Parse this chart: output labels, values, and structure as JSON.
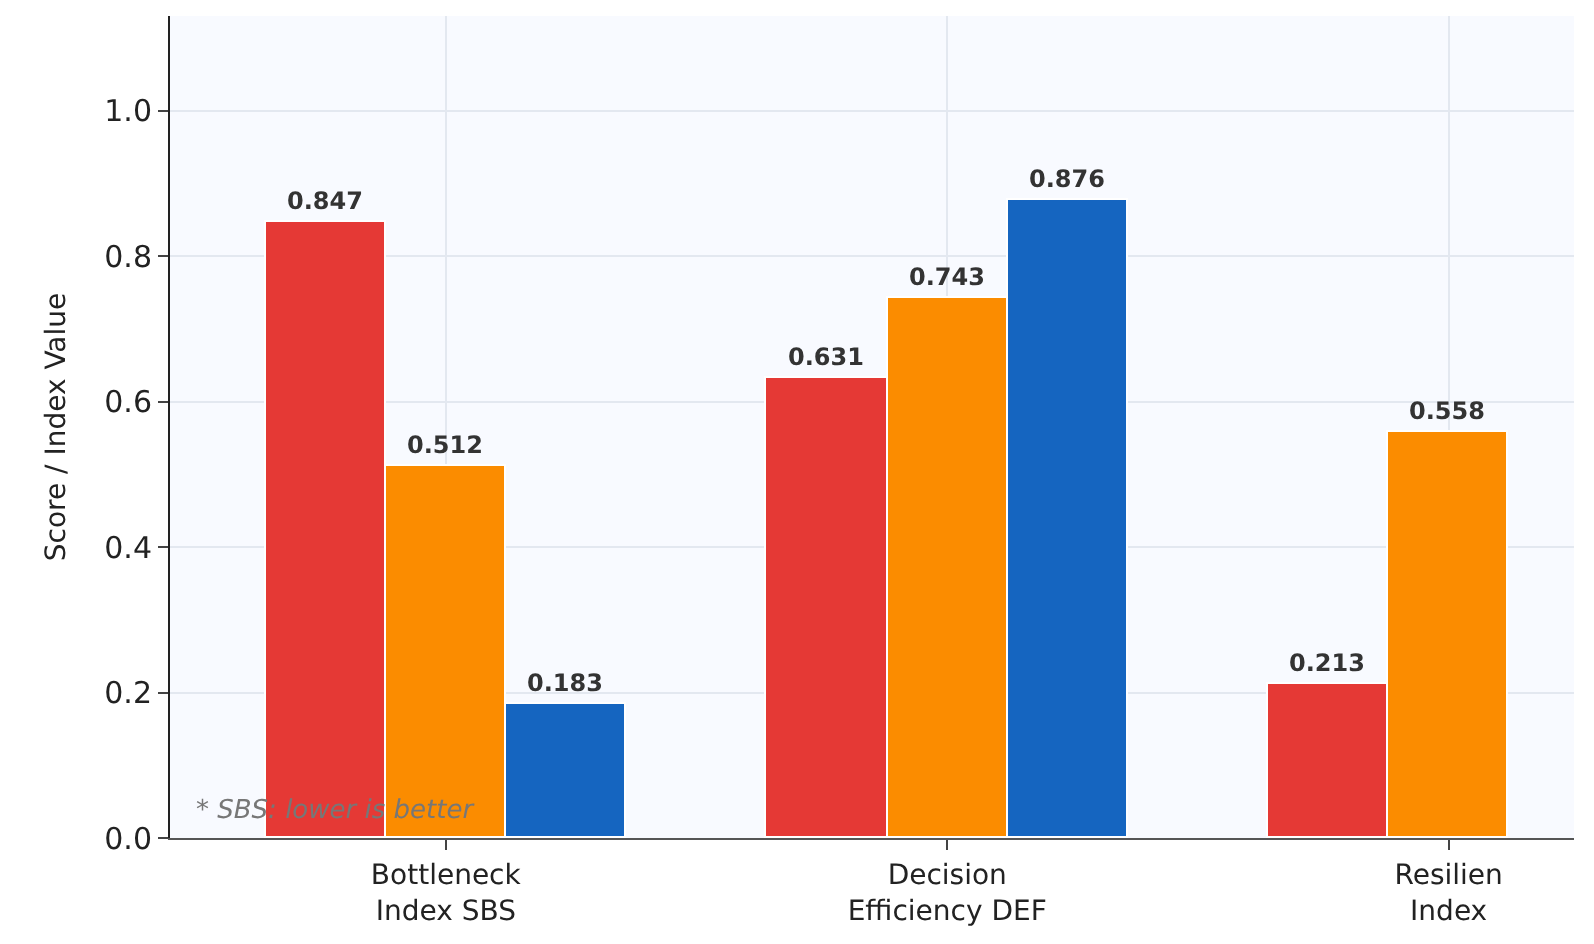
{
  "chart_data": {
    "type": "bar",
    "ylabel": "Score / Index Value",
    "categories": [
      "Bottleneck\nIndex SBS",
      "Decision\nEfficiency DEF",
      "Resilien\nIndex"
    ],
    "series": [
      {
        "color": "#e53935",
        "values": [
          0.847,
          0.631,
          0.213
        ]
      },
      {
        "color": "#fb8c00",
        "values": [
          0.512,
          0.743,
          0.558
        ]
      },
      {
        "color": "#1565c0",
        "values": [
          0.183,
          0.876,
          null
        ]
      }
    ],
    "ylim": [
      0,
      1.13
    ],
    "yticks": [
      {
        "value": 0,
        "label": "0.0"
      },
      0.2,
      0.4,
      0.6,
      0.8,
      {
        "value": 1,
        "label": "1.0"
      }
    ],
    "grid": true,
    "data_labels": true,
    "annotations": [
      "* SBS: lower is better"
    ]
  }
}
